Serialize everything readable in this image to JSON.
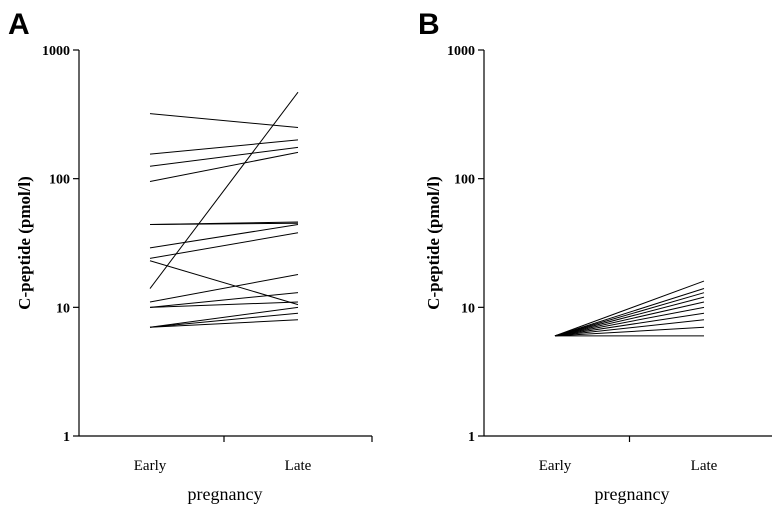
{
  "chart_data": [
    {
      "panel": "A",
      "type": "line",
      "scale": "log",
      "categories": [
        "Early",
        "Late"
      ],
      "xlabel": "pregnancy",
      "ylabel": "C-peptide (pmol/l)",
      "ylim": [
        1,
        1000
      ],
      "yticks": [
        "1",
        "10",
        "100",
        "1000"
      ],
      "grid": false,
      "series": [
        {
          "values": [
            320,
            250
          ]
        },
        {
          "values": [
            155,
            200
          ]
        },
        {
          "values": [
            125,
            175
          ]
        },
        {
          "values": [
            95,
            160
          ]
        },
        {
          "values": [
            44,
            46
          ]
        },
        {
          "values": [
            44,
            45
          ]
        },
        {
          "values": [
            29,
            44
          ]
        },
        {
          "values": [
            24,
            38
          ]
        },
        {
          "values": [
            23,
            10.5
          ]
        },
        {
          "values": [
            14,
            470
          ]
        },
        {
          "values": [
            11,
            18
          ]
        },
        {
          "values": [
            10,
            13
          ]
        },
        {
          "values": [
            10,
            11
          ]
        },
        {
          "values": [
            7,
            10
          ]
        },
        {
          "values": [
            7,
            9
          ]
        },
        {
          "values": [
            7,
            8
          ]
        }
      ]
    },
    {
      "panel": "B",
      "type": "line",
      "scale": "log",
      "categories": [
        "Early",
        "Late"
      ],
      "xlabel": "pregnancy",
      "ylabel": "C-peptide (pmol/l)",
      "ylim": [
        1,
        1000
      ],
      "yticks": [
        "1",
        "10",
        "100",
        "1000"
      ],
      "grid": false,
      "series": [
        {
          "values": [
            6,
            16
          ]
        },
        {
          "values": [
            6,
            14
          ]
        },
        {
          "values": [
            6,
            13
          ]
        },
        {
          "values": [
            6,
            12
          ]
        },
        {
          "values": [
            6,
            11
          ]
        },
        {
          "values": [
            6,
            10
          ]
        },
        {
          "values": [
            6,
            9
          ]
        },
        {
          "values": [
            6,
            8
          ]
        },
        {
          "values": [
            6,
            7
          ]
        },
        {
          "values": [
            6,
            6
          ]
        }
      ]
    }
  ]
}
